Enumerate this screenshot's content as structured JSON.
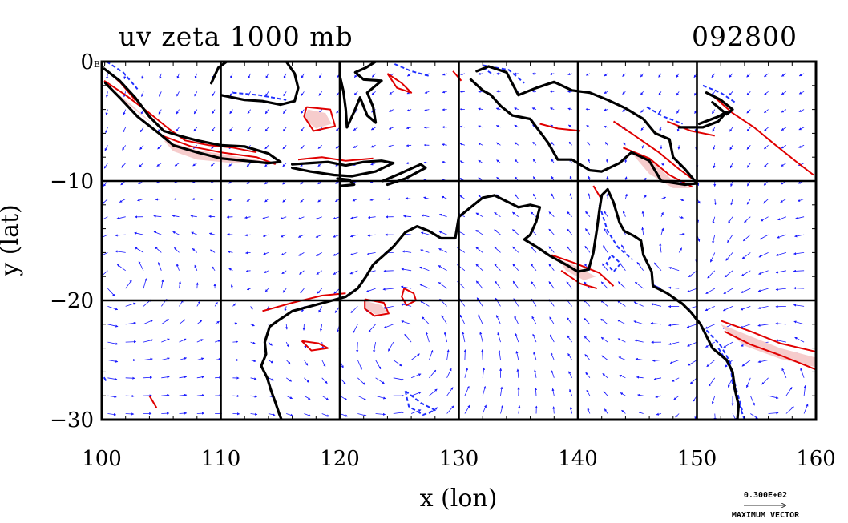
{
  "figure": {
    "title": "uv zeta 1000 mb",
    "timestamp": "092800",
    "xlabel": "x (lon)",
    "ylabel": "y (lat)",
    "corner_label": "E0",
    "legend_value": "0.300E+02",
    "legend_label": "MAXIMUM VECTOR"
  },
  "axes": {
    "xlim": [
      100,
      160
    ],
    "ylim": [
      -30,
      0
    ],
    "xticks": [
      "100",
      "110",
      "120",
      "130",
      "140",
      "150",
      "160"
    ],
    "yticks": [
      "0",
      "−10",
      "−20",
      "−30"
    ],
    "grid": true
  },
  "colors": {
    "vector": "#1a1aff",
    "positive_contour": "#e00000",
    "positive_fill": "#f6cccc",
    "negative_contour": "#2030ff",
    "coastline": "#000000"
  },
  "coastlines": [
    [
      [
        100.2,
        -0.6
      ],
      [
        101.5,
        -1.6
      ],
      [
        102.8,
        -3.0
      ],
      [
        104.0,
        -4.6
      ],
      [
        105.2,
        -5.8
      ],
      [
        106.5,
        -6.2
      ],
      [
        108.0,
        -6.6
      ],
      [
        110.0,
        -7.0
      ],
      [
        112.0,
        -7.1
      ],
      [
        114.0,
        -7.7
      ],
      [
        115.0,
        -8.4
      ],
      [
        114.0,
        -8.5
      ],
      [
        112.0,
        -8.3
      ],
      [
        110.0,
        -8.1
      ],
      [
        108.0,
        -7.6
      ],
      [
        106.0,
        -7.0
      ],
      [
        104.8,
        -6.0
      ],
      [
        103.0,
        -4.6
      ],
      [
        101.5,
        -3.0
      ],
      [
        100.3,
        -1.8
      ]
    ],
    [
      [
        116.0,
        -8.6
      ],
      [
        117.5,
        -8.5
      ],
      [
        119.0,
        -8.4
      ],
      [
        120.5,
        -8.7
      ],
      [
        122.0,
        -8.4
      ],
      [
        123.5,
        -8.3
      ],
      [
        124.5,
        -8.5
      ],
      [
        123.0,
        -9.2
      ],
      [
        121.0,
        -9.6
      ],
      [
        119.5,
        -9.5
      ],
      [
        117.5,
        -9.2
      ],
      [
        116.0,
        -8.9
      ]
    ],
    [
      [
        119.8,
        -9.8
      ],
      [
        120.8,
        -9.9
      ],
      [
        121.2,
        -10.3
      ],
      [
        120.2,
        -10.4
      ]
    ],
    [
      [
        123.6,
        -10.0
      ],
      [
        125.0,
        -9.4
      ],
      [
        126.8,
        -8.6
      ],
      [
        127.2,
        -8.9
      ],
      [
        125.5,
        -9.8
      ],
      [
        124.0,
        -10.3
      ]
    ],
    [
      [
        109.2,
        -1.8
      ],
      [
        109.8,
        -0.5
      ],
      [
        110.5,
        0.0
      ],
      [
        115.5,
        0.0
      ],
      [
        116.2,
        -1.0
      ],
      [
        116.5,
        -2.2
      ],
      [
        116.2,
        -3.3
      ],
      [
        115.0,
        -3.6
      ],
      [
        113.5,
        -3.3
      ],
      [
        112.0,
        -3.2
      ],
      [
        111.0,
        -3.0
      ],
      [
        110.0,
        -2.8
      ]
    ],
    [
      [
        120.0,
        0.0
      ],
      [
        120.0,
        -1.2
      ],
      [
        120.3,
        -2.5
      ],
      [
        120.5,
        -4.0
      ],
      [
        120.6,
        -5.5
      ],
      [
        121.2,
        -4.2
      ],
      [
        121.7,
        -3.0
      ],
      [
        122.3,
        -4.5
      ],
      [
        123.0,
        -5.1
      ],
      [
        122.8,
        -3.8
      ],
      [
        122.3,
        -2.6
      ],
      [
        123.5,
        -1.6
      ],
      [
        122.0,
        -1.5
      ],
      [
        121.3,
        -0.9
      ],
      [
        122.2,
        -0.5
      ],
      [
        123.0,
        0.0
      ]
    ],
    [
      [
        131.5,
        -0.8
      ],
      [
        132.5,
        -0.4
      ],
      [
        134.0,
        -0.9
      ],
      [
        135.0,
        -2.8
      ],
      [
        136.5,
        -2.2
      ],
      [
        138.0,
        -1.7
      ],
      [
        139.5,
        -2.4
      ],
      [
        141.0,
        -2.6
      ],
      [
        142.5,
        -3.2
      ],
      [
        144.0,
        -3.9
      ],
      [
        145.5,
        -4.8
      ],
      [
        146.5,
        -6.0
      ],
      [
        147.7,
        -6.5
      ],
      [
        148.0,
        -8.0
      ],
      [
        149.0,
        -9.0
      ],
      [
        150.0,
        -10.2
      ],
      [
        149.0,
        -10.3
      ],
      [
        147.0,
        -10.0
      ],
      [
        146.0,
        -8.3
      ],
      [
        144.5,
        -7.6
      ],
      [
        143.5,
        -8.5
      ],
      [
        142.0,
        -9.2
      ],
      [
        141.0,
        -9.1
      ],
      [
        139.5,
        -8.2
      ],
      [
        138.3,
        -8.2
      ],
      [
        137.5,
        -6.8
      ],
      [
        136.0,
        -4.8
      ],
      [
        134.5,
        -4.5
      ],
      [
        133.5,
        -3.7
      ],
      [
        132.7,
        -2.8
      ],
      [
        132.0,
        -2.4
      ],
      [
        131.0,
        -1.5
      ]
    ],
    [
      [
        148.5,
        -5.5
      ],
      [
        150.5,
        -5.5
      ],
      [
        151.8,
        -5.0
      ],
      [
        152.5,
        -4.2
      ],
      [
        151.8,
        -4.6
      ],
      [
        150.2,
        -5.2
      ]
    ],
    [
      [
        150.8,
        -2.6
      ],
      [
        152.0,
        -3.2
      ],
      [
        153.0,
        -4.0
      ],
      [
        152.5,
        -4.4
      ],
      [
        151.3,
        -3.4
      ]
    ],
    [
      [
        133.0,
        -11.2
      ],
      [
        134.0,
        -11.7
      ],
      [
        135.0,
        -12.2
      ],
      [
        136.0,
        -12.0
      ],
      [
        136.8,
        -12.2
      ],
      [
        136.5,
        -13.4
      ],
      [
        136.0,
        -14.5
      ],
      [
        135.5,
        -14.9
      ],
      [
        136.5,
        -15.5
      ],
      [
        137.7,
        -16.3
      ],
      [
        139.0,
        -17.0
      ],
      [
        140.0,
        -17.6
      ],
      [
        140.9,
        -17.4
      ],
      [
        141.3,
        -16.0
      ],
      [
        141.6,
        -14.0
      ],
      [
        141.8,
        -12.5
      ],
      [
        142.0,
        -11.2
      ],
      [
        142.5,
        -10.7
      ],
      [
        143.0,
        -11.8
      ],
      [
        143.5,
        -13.5
      ],
      [
        143.9,
        -14.2
      ],
      [
        144.7,
        -14.6
      ],
      [
        145.3,
        -15.0
      ],
      [
        145.5,
        -16.2
      ],
      [
        146.2,
        -17.6
      ],
      [
        146.3,
        -18.8
      ],
      [
        147.5,
        -19.4
      ],
      [
        148.8,
        -20.3
      ],
      [
        149.5,
        -21.0
      ],
      [
        150.3,
        -22.0
      ],
      [
        150.8,
        -23.0
      ],
      [
        151.3,
        -24.0
      ],
      [
        152.5,
        -25.0
      ],
      [
        153.0,
        -26.0
      ],
      [
        153.2,
        -27.5
      ],
      [
        153.5,
        -28.8
      ],
      [
        153.4,
        -30.0
      ]
    ],
    [
      [
        133.0,
        -11.2
      ],
      [
        132.0,
        -11.4
      ],
      [
        131.0,
        -12.2
      ],
      [
        130.0,
        -13.0
      ],
      [
        129.7,
        -14.8
      ],
      [
        128.5,
        -14.8
      ],
      [
        127.5,
        -14.2
      ],
      [
        126.5,
        -13.8
      ],
      [
        125.5,
        -14.3
      ],
      [
        124.5,
        -15.5
      ],
      [
        123.6,
        -16.3
      ],
      [
        122.8,
        -17.0
      ],
      [
        122.2,
        -18.0
      ],
      [
        121.5,
        -19.0
      ],
      [
        120.5,
        -19.7
      ],
      [
        119.0,
        -20.1
      ],
      [
        117.5,
        -20.5
      ],
      [
        116.0,
        -20.9
      ],
      [
        114.8,
        -21.7
      ],
      [
        114.1,
        -22.2
      ],
      [
        113.7,
        -23.5
      ],
      [
        113.8,
        -24.5
      ],
      [
        113.4,
        -25.5
      ],
      [
        113.9,
        -26.5
      ],
      [
        114.2,
        -27.5
      ],
      [
        114.6,
        -28.6
      ],
      [
        114.9,
        -29.5
      ],
      [
        115.1,
        -30.0
      ]
    ]
  ],
  "positive_regions": [
    [
      [
        100.4,
        -2.0
      ],
      [
        102.5,
        -3.6
      ],
      [
        104.5,
        -5.4
      ],
      [
        106.0,
        -6.6
      ],
      [
        105.0,
        -5.8
      ],
      [
        103.0,
        -4.2
      ],
      [
        101.0,
        -2.6
      ]
    ],
    [
      [
        105.2,
        -6.6
      ],
      [
        108.0,
        -7.4
      ],
      [
        111.0,
        -7.9
      ],
      [
        113.5,
        -8.3
      ],
      [
        111.0,
        -8.5
      ],
      [
        108.0,
        -8.2
      ],
      [
        106.0,
        -7.5
      ]
    ],
    [
      [
        117.3,
        -4.0
      ],
      [
        118.8,
        -4.3
      ],
      [
        119.3,
        -5.2
      ],
      [
        118.0,
        -5.6
      ],
      [
        117.0,
        -4.8
      ]
    ],
    [
      [
        144.3,
        -7.4
      ],
      [
        146.2,
        -8.3
      ],
      [
        147.8,
        -9.8
      ],
      [
        149.5,
        -10.6
      ],
      [
        148.0,
        -10.6
      ],
      [
        146.0,
        -9.4
      ]
    ],
    [
      [
        152.0,
        -22.0
      ],
      [
        154.5,
        -23.0
      ],
      [
        157.0,
        -24.0
      ],
      [
        160.0,
        -24.8
      ],
      [
        160.0,
        -25.6
      ],
      [
        157.0,
        -24.9
      ],
      [
        154.0,
        -23.8
      ],
      [
        152.3,
        -22.4
      ]
    ],
    [
      [
        122.0,
        -20.0
      ],
      [
        123.5,
        -20.4
      ],
      [
        124.0,
        -21.0
      ],
      [
        123.0,
        -21.2
      ],
      [
        122.2,
        -20.7
      ]
    ],
    [
      [
        138.3,
        -16.5
      ],
      [
        140.0,
        -17.2
      ],
      [
        141.5,
        -18.0
      ],
      [
        140.5,
        -18.3
      ],
      [
        139.0,
        -17.5
      ]
    ]
  ],
  "positive_contours": [
    [
      [
        100.2,
        -1.6
      ],
      [
        102.0,
        -2.8
      ],
      [
        104.0,
        -4.3
      ],
      [
        105.6,
        -5.6
      ],
      [
        107.0,
        -6.6
      ],
      [
        109.0,
        -7.0
      ],
      [
        111.0,
        -7.2
      ],
      [
        113.0,
        -7.6
      ]
    ],
    [
      [
        100.5,
        -0.8
      ],
      [
        101.6,
        -1.8
      ],
      [
        102.8,
        -3.2
      ]
    ],
    [
      [
        104.8,
        -6.1
      ],
      [
        107.5,
        -7.1
      ],
      [
        110.0,
        -7.6
      ],
      [
        113.0,
        -8.0
      ],
      [
        114.6,
        -8.6
      ]
    ],
    [
      [
        116.5,
        -8.2
      ],
      [
        118.5,
        -8.0
      ],
      [
        120.5,
        -8.3
      ],
      [
        122.8,
        -8.1
      ]
    ],
    [
      [
        117.2,
        -3.8
      ],
      [
        119.2,
        -4.0
      ],
      [
        119.6,
        -5.4
      ],
      [
        117.8,
        -5.8
      ],
      [
        117.0,
        -4.6
      ],
      [
        117.2,
        -3.8
      ]
    ],
    [
      [
        124.0,
        -1.0
      ],
      [
        125.2,
        -1.8
      ],
      [
        126.0,
        -2.6
      ],
      [
        124.8,
        -2.2
      ],
      [
        124.0,
        -1.0
      ]
    ],
    [
      [
        129.5,
        -0.8
      ],
      [
        130.2,
        -1.6
      ]
    ],
    [
      [
        136.8,
        -5.2
      ],
      [
        138.3,
        -5.6
      ],
      [
        140.2,
        -5.8
      ]
    ],
    [
      [
        143.0,
        -5.0
      ],
      [
        144.5,
        -6.0
      ],
      [
        146.8,
        -7.6
      ],
      [
        148.5,
        -9.0
      ],
      [
        150.0,
        -10.1
      ]
    ],
    [
      [
        143.8,
        -7.2
      ],
      [
        146.0,
        -8.1
      ],
      [
        147.7,
        -9.5
      ],
      [
        149.6,
        -10.5
      ]
    ],
    [
      [
        147.5,
        -5.0
      ],
      [
        149.5,
        -5.8
      ],
      [
        151.5,
        -6.2
      ]
    ],
    [
      [
        151.5,
        -3.0
      ],
      [
        153.0,
        -4.3
      ],
      [
        154.8,
        -5.5
      ],
      [
        156.5,
        -6.9
      ],
      [
        158.5,
        -8.5
      ],
      [
        159.8,
        -9.5
      ]
    ],
    [
      [
        152.0,
        -21.7
      ],
      [
        154.5,
        -22.6
      ],
      [
        157.0,
        -23.6
      ],
      [
        160.0,
        -24.3
      ]
    ],
    [
      [
        152.3,
        -22.6
      ],
      [
        154.5,
        -23.7
      ],
      [
        157.0,
        -24.6
      ],
      [
        160.0,
        -25.8
      ]
    ],
    [
      [
        113.5,
        -20.9
      ],
      [
        116.0,
        -20.2
      ],
      [
        118.5,
        -19.6
      ],
      [
        120.5,
        -19.4
      ]
    ],
    [
      [
        122.1,
        -19.9
      ],
      [
        123.7,
        -20.2
      ],
      [
        124.1,
        -21.1
      ],
      [
        122.9,
        -21.3
      ],
      [
        122.1,
        -20.7
      ],
      [
        122.1,
        -19.9
      ]
    ],
    [
      [
        125.4,
        -19.0
      ],
      [
        126.2,
        -19.4
      ],
      [
        126.4,
        -20.0
      ],
      [
        125.6,
        -20.4
      ],
      [
        125.2,
        -19.7
      ],
      [
        125.4,
        -19.0
      ]
    ],
    [
      [
        137.8,
        -16.2
      ],
      [
        139.8,
        -16.9
      ],
      [
        141.8,
        -17.7
      ],
      [
        143.0,
        -18.8
      ]
    ],
    [
      [
        138.6,
        -17.5
      ],
      [
        140.2,
        -18.6
      ],
      [
        141.6,
        -19.0
      ]
    ],
    [
      [
        116.8,
        -23.4
      ],
      [
        118.2,
        -23.6
      ],
      [
        119.0,
        -24.0
      ],
      [
        117.6,
        -24.2
      ],
      [
        116.8,
        -23.4
      ]
    ],
    [
      [
        141.3,
        -10.4
      ],
      [
        141.9,
        -11.4
      ]
    ],
    [
      [
        104.0,
        -28.0
      ],
      [
        104.6,
        -29.0
      ]
    ]
  ],
  "negative_contours": [
    [
      [
        100.4,
        0.0
      ],
      [
        101.8,
        -0.9
      ],
      [
        103.0,
        -2.3
      ]
    ],
    [
      [
        124.6,
        -0.2
      ],
      [
        126.0,
        -0.8
      ],
      [
        127.5,
        -1.2
      ]
    ],
    [
      [
        111.0,
        -2.6
      ],
      [
        113.2,
        -2.8
      ],
      [
        115.5,
        -3.2
      ]
    ],
    [
      [
        132.0,
        -0.3
      ],
      [
        134.2,
        -0.7
      ],
      [
        135.5,
        -1.8
      ]
    ],
    [
      [
        145.8,
        -3.8
      ],
      [
        147.2,
        -4.6
      ],
      [
        148.8,
        -5.2
      ]
    ],
    [
      [
        150.5,
        -2.0
      ],
      [
        152.0,
        -2.6
      ],
      [
        153.2,
        -3.4
      ]
    ],
    [
      [
        141.8,
        -12.0
      ],
      [
        142.5,
        -14.2
      ],
      [
        143.4,
        -15.6
      ],
      [
        144.6,
        -16.6
      ]
    ],
    [
      [
        142.8,
        -16.2
      ],
      [
        143.6,
        -16.9
      ],
      [
        143.0,
        -17.6
      ],
      [
        142.4,
        -16.9
      ],
      [
        142.8,
        -16.2
      ]
    ],
    [
      [
        150.8,
        -22.5
      ],
      [
        152.0,
        -23.8
      ],
      [
        152.8,
        -25.2
      ],
      [
        153.0,
        -27.0
      ],
      [
        153.5,
        -28.6
      ],
      [
        154.0,
        -30.0
      ]
    ],
    [
      [
        151.8,
        -24.0
      ],
      [
        152.8,
        -25.6
      ],
      [
        153.3,
        -27.4
      ],
      [
        153.8,
        -29.2
      ]
    ],
    [
      [
        125.5,
        -27.6
      ],
      [
        126.8,
        -28.6
      ],
      [
        128.0,
        -29.2
      ],
      [
        127.0,
        -29.6
      ],
      [
        125.8,
        -28.9
      ],
      [
        125.5,
        -27.6
      ]
    ],
    [
      [
        132.0,
        -0.5
      ],
      [
        132.9,
        -1.1
      ]
    ],
    [
      [
        99.9,
        -26.0
      ],
      [
        100.4,
        -26.8
      ]
    ]
  ],
  "vector_field": {
    "grid_spacing_deg": 1.5,
    "max_vector_ms": 30,
    "vortices": [
      {
        "lon": 101.0,
        "lat": -18.5,
        "strength": 1.0,
        "sense": "cyclonic"
      },
      {
        "lon": 125.5,
        "lat": -24.0,
        "strength": 1.1,
        "sense": "cyclonic"
      },
      {
        "lon": 149.0,
        "lat": -17.0,
        "strength": 0.8,
        "sense": "anticyclonic"
      },
      {
        "lon": 156.5,
        "lat": -26.5,
        "strength": 1.2,
        "sense": "cyclonic"
      }
    ]
  }
}
